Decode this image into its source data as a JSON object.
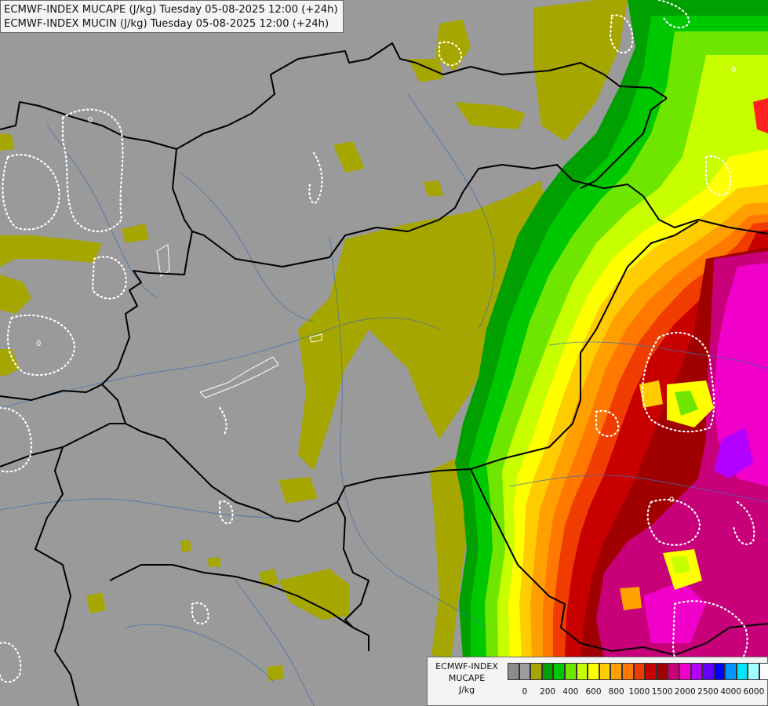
{
  "header": {
    "line1": "ECMWF-INDEX MUCAPE (J/kg) Tuesday 05-08-2025 12:00 (+24h)",
    "line2": "ECMWF-INDEX MUCIN (J/kg) Tuesday 05-08-2025 12:00 (+24h)"
  },
  "legend": {
    "model": "ECMWF-INDEX",
    "parameter": "MUCAPE",
    "unit": "J/kg",
    "tick_labels": [
      "0",
      "200",
      "400",
      "600",
      "800",
      "1000",
      "1500",
      "2000",
      "2500",
      "4000",
      "6000"
    ],
    "colors": [
      "#8c8c8c",
      "#9c9c9c",
      "#a6a600",
      "#00a000",
      "#00c800",
      "#6ee600",
      "#c8ff00",
      "#ffff00",
      "#ffcc00",
      "#ffa000",
      "#ff7800",
      "#f03c00",
      "#c80000",
      "#a00000",
      "#c8007a",
      "#f000c8",
      "#b400ff",
      "#6400ff",
      "#0000ff",
      "#0096ff",
      "#00e6ff",
      "#a0ffff",
      "#ffffff"
    ]
  },
  "map": {
    "cape_zero_label": "0"
  }
}
